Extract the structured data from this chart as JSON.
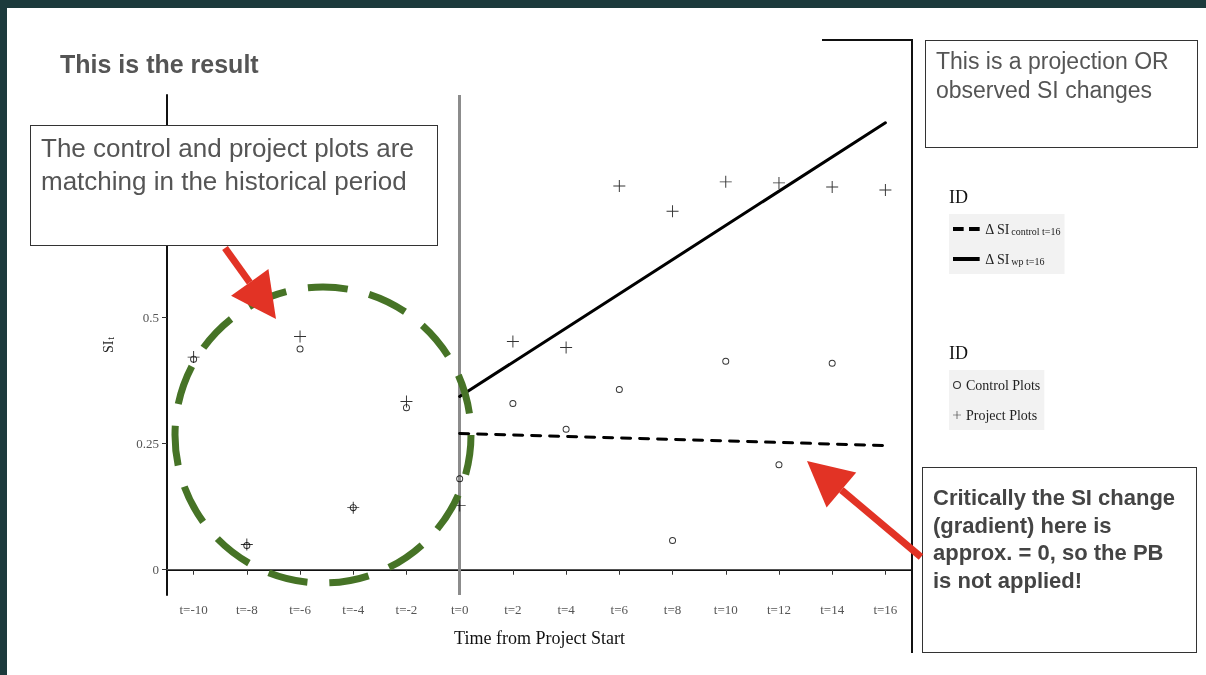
{
  "chart_data": {
    "type": "scatter",
    "title": "This is the result",
    "xlabel": "Time from Project Start",
    "ylabel": "SI$_{t}$",
    "legend_title": "ID",
    "categories": [
      "t=-10",
      "t=-8",
      "t=-6",
      "t=-4",
      "t=-2",
      "t=0",
      "t=2",
      "t=4",
      "t=6",
      "t=8",
      "t=10",
      "t=12",
      "t=14",
      "t=16"
    ],
    "series": [
      {
        "name": "Δ SI$_{control t=16}$",
        "type": "line",
        "color": "#000000",
        "line_style": "dashed",
        "marker": "none",
        "values": [
          null,
          null,
          null,
          null,
          null,
          0.27,
          null,
          null,
          null,
          null,
          null,
          null,
          null,
          0.246
        ]
      },
      {
        "name": "Δ SI$_{wp t=16}$",
        "type": "line",
        "color": "#000000",
        "line_style": "solid",
        "marker": "none",
        "values": [
          null,
          null,
          null,
          null,
          null,
          0.343,
          null,
          null,
          null,
          null,
          null,
          null,
          null,
          0.885
        ]
      },
      {
        "name": "Control Plots",
        "type": "scatter",
        "color": "#000000",
        "marker": "circle",
        "values": [
          0.417,
          0.048,
          0.437,
          0.123,
          0.321,
          0.18,
          0.329,
          0.278,
          0.357,
          0.058,
          0.413,
          0.208,
          0.409,
          null
        ]
      },
      {
        "name": "Project Plots",
        "type": "scatter",
        "color": "#000000",
        "marker": "cross",
        "values": [
          0.421,
          0.05,
          0.462,
          0.123,
          0.333,
          0.127,
          0.452,
          0.44,
          0.76,
          0.71,
          0.768,
          0.766,
          0.758,
          0.752
        ]
      }
    ],
    "ylim": [
      -0.05,
      0.94
    ],
    "yticks": [
      0,
      0.25,
      0.5
    ],
    "ref_lines": [
      {
        "axis": "y",
        "value": 0,
        "color": "#555555"
      },
      {
        "axis": "x",
        "value": "t=0",
        "color": "#8c8c8c"
      }
    ],
    "grid": false,
    "legend": "right",
    "annotations": [
      "The control and project plots are matching in the historical period",
      "This is a projection OR observed SI changes",
      "Critically the SI change (gradient) here is approx. = 0, so the PB is not applied!"
    ]
  }
}
